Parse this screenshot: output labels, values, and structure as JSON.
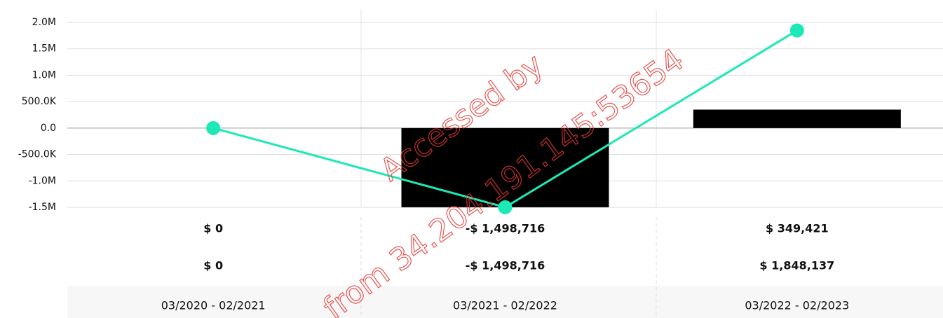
{
  "chart_data": {
    "type": "combo",
    "categories": [
      "03/2020 - 02/2021",
      "03/2021 - 02/2022",
      "03/2022 - 02/2023"
    ],
    "series": [
      {
        "type": "bar",
        "color": "#000000",
        "values": [
          0,
          -1498716,
          349421
        ],
        "value_labels": [
          "$ 0",
          "-$ 1,498,716",
          "$ 349,421"
        ]
      },
      {
        "type": "line",
        "color": "#1de9b6",
        "values": [
          0,
          -1498716,
          1848137
        ],
        "value_labels": [
          "$ 0",
          "-$ 1,498,716",
          "$ 1,848,137"
        ]
      }
    ],
    "ylim": [
      -1500000,
      2000000
    ],
    "yticks": [
      {
        "value": 2000000,
        "label": "2.0M"
      },
      {
        "value": 1500000,
        "label": "1.5M"
      },
      {
        "value": 1000000,
        "label": "1.0M"
      },
      {
        "value": 500000,
        "label": "500.0K"
      },
      {
        "value": 0,
        "label": "0.0"
      },
      {
        "value": -500000,
        "label": "-500.0K"
      },
      {
        "value": -1000000,
        "label": "-1.0M"
      },
      {
        "value": -1500000,
        "label": "-1.5M"
      }
    ],
    "grid": true,
    "watermark": [
      "Accessed by",
      "from 34.204.191.145:53654"
    ]
  }
}
